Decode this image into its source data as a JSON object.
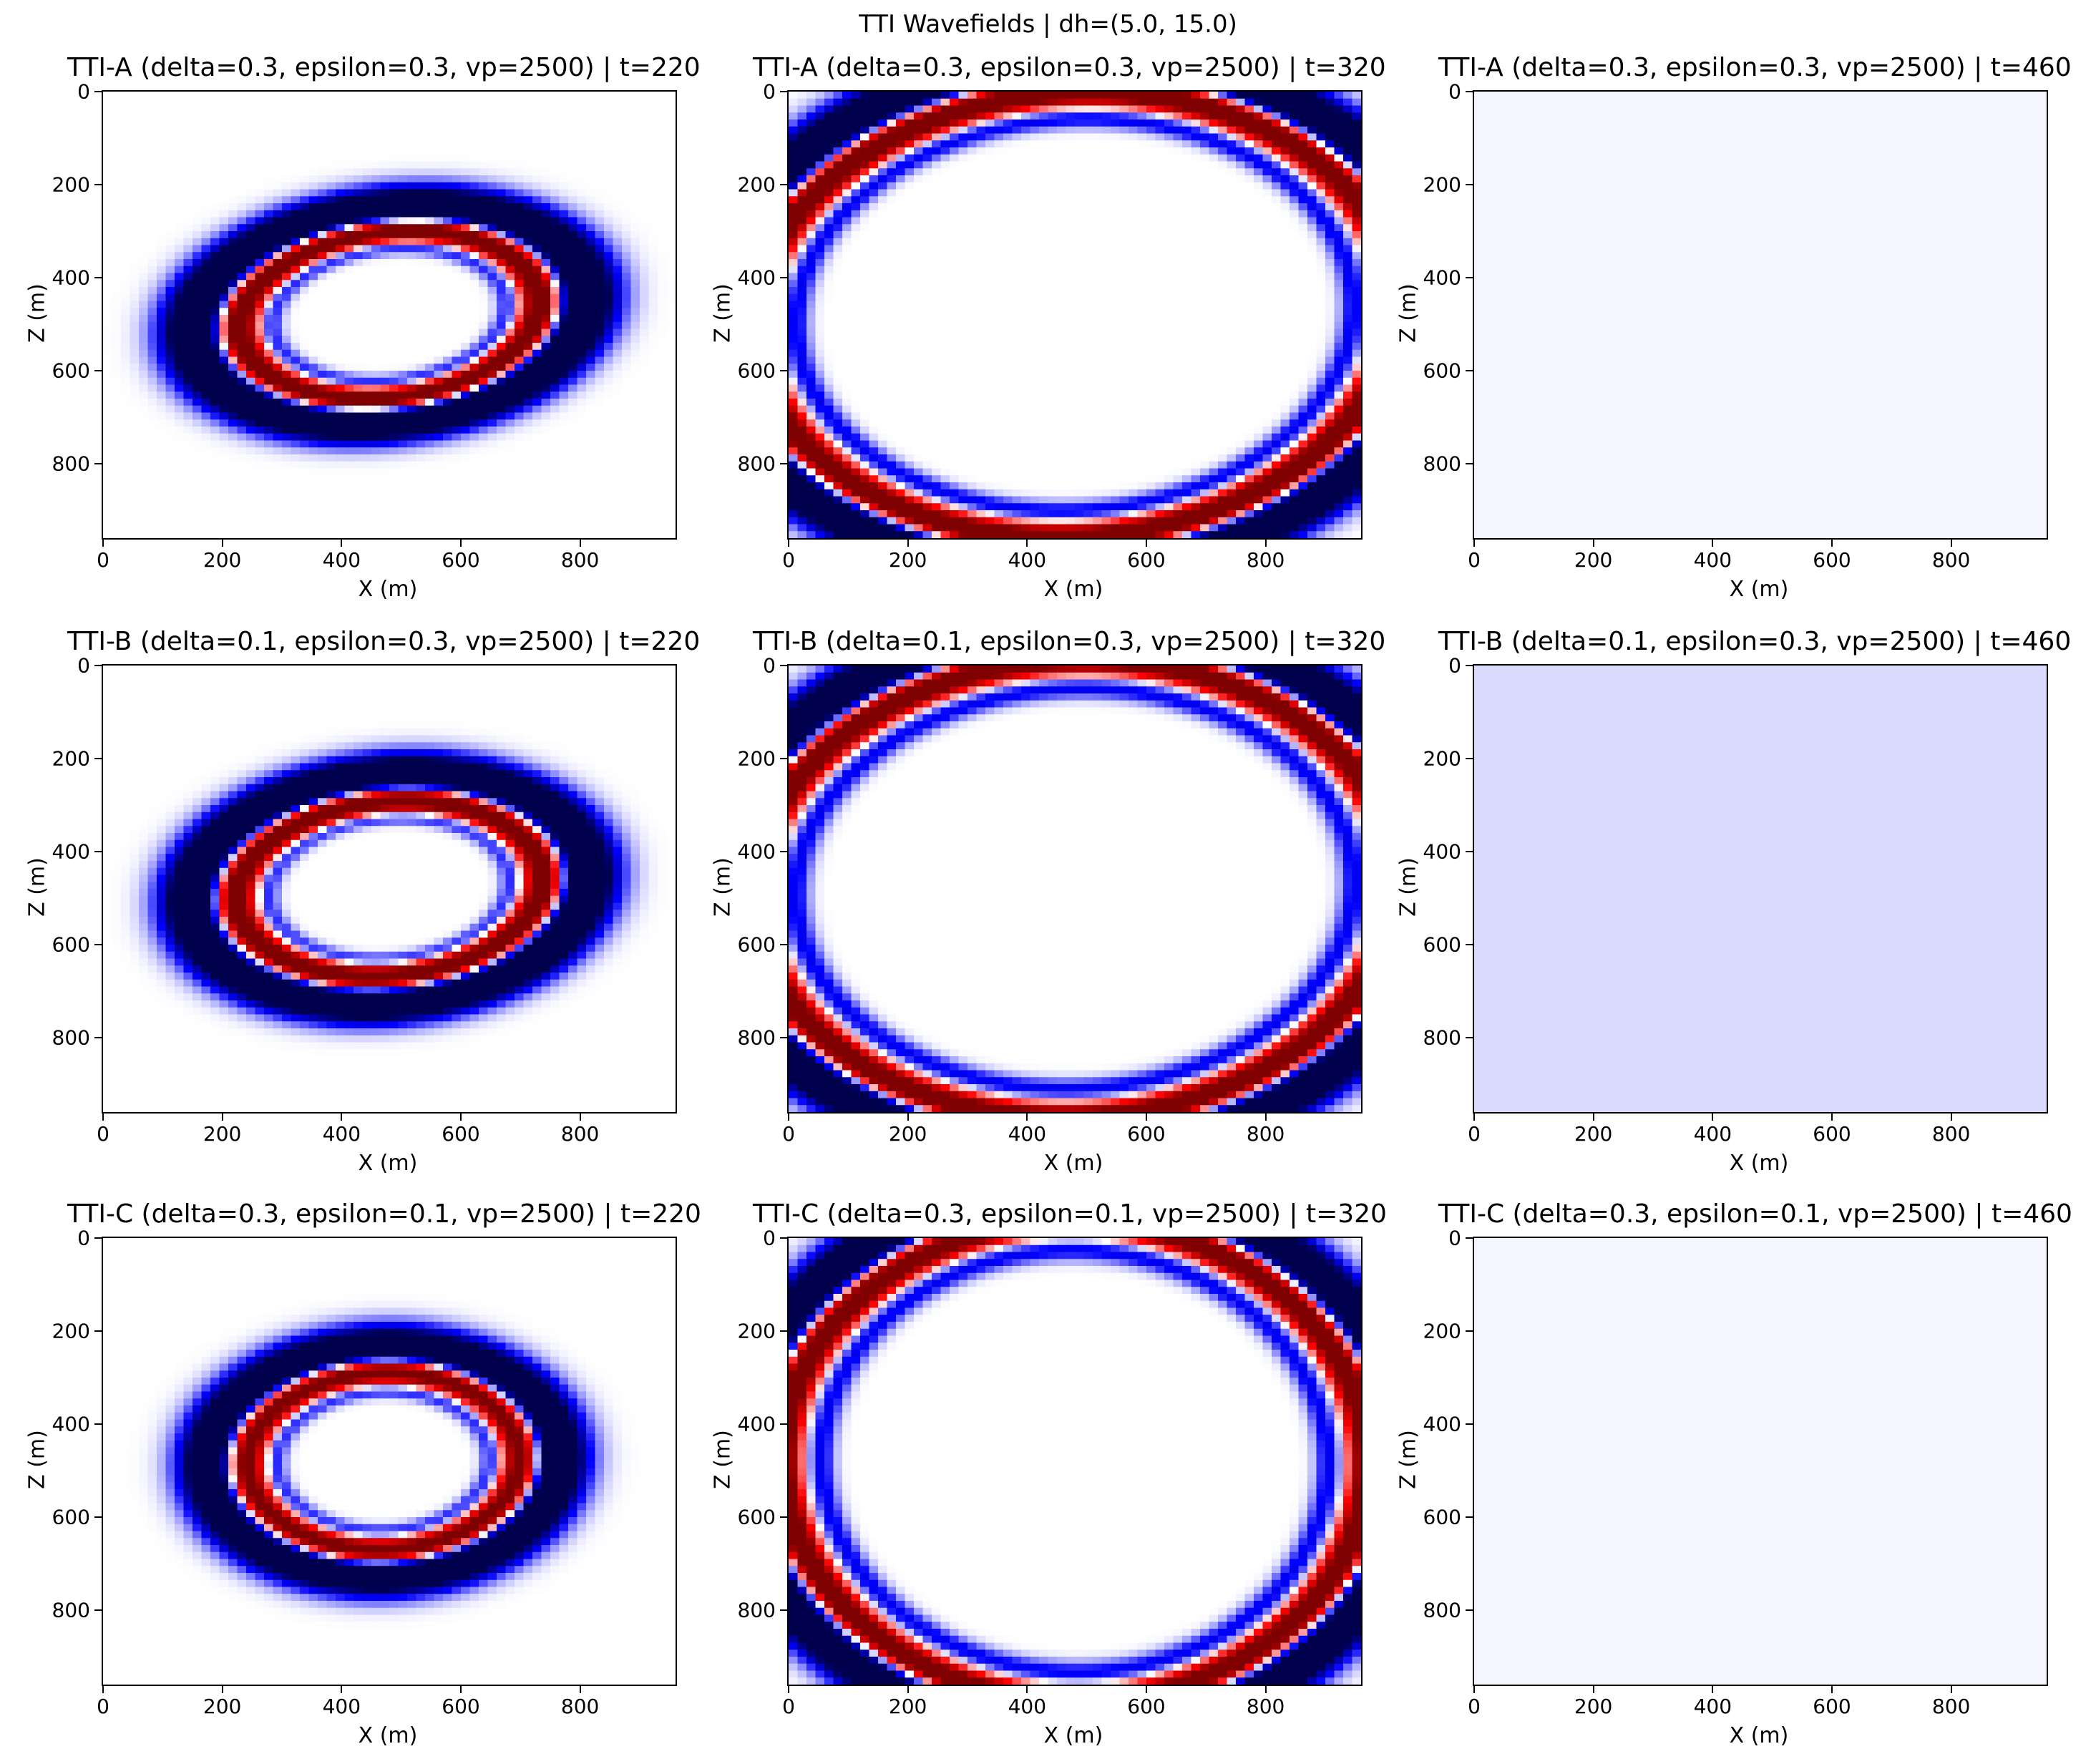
{
  "figure": {
    "title": "TTI Wavefields | dh=(5.0, 15.0)"
  },
  "chart_data": [
    {
      "type": "heatmap",
      "title": "TTI-A (delta=0.3, epsilon=0.3, vp=2500) | t=220",
      "xlabel": "X (m)",
      "ylabel": "Z (m)",
      "xlim": [
        0,
        960
      ],
      "ylim": [
        960,
        0
      ],
      "xticks": [
        0,
        200,
        400,
        600,
        800
      ],
      "yticks": [
        0,
        200,
        400,
        600,
        800
      ],
      "colormap": "seismic",
      "field": {
        "cx": 480,
        "cz": 480,
        "rings": [
          {
            "rx": 330,
            "rz": 230,
            "w": 70,
            "sign": -1,
            "amp": 1.0
          },
          {
            "rx": 260,
            "rz": 180,
            "w": 40,
            "sign": 1,
            "amp": 1.0
          },
          {
            "rx": 200,
            "rz": 140,
            "w": 22,
            "sign": -1,
            "amp": 0.3
          }
        ],
        "tilt_deg": -12
      }
    },
    {
      "type": "heatmap",
      "title": "TTI-A (delta=0.3, epsilon=0.3, vp=2500) | t=320",
      "xlabel": "X (m)",
      "ylabel": "Z (m)",
      "xlim": [
        0,
        960
      ],
      "ylim": [
        960,
        0
      ],
      "xticks": [
        0,
        200,
        400,
        600,
        800
      ],
      "yticks": [
        0,
        200,
        400,
        600,
        800
      ],
      "colormap": "seismic",
      "field": {
        "cx": 480,
        "cz": 480,
        "rings": [
          {
            "rx": 610,
            "rz": 545,
            "w": 70,
            "sign": -1,
            "amp": 1.0
          },
          {
            "rx": 545,
            "rz": 480,
            "w": 45,
            "sign": 1,
            "amp": 1.0
          },
          {
            "rx": 470,
            "rz": 420,
            "w": 30,
            "sign": -1,
            "amp": 0.35
          }
        ],
        "tilt_deg": -12
      }
    },
    {
      "type": "heatmap",
      "title": "TTI-A (delta=0.3, epsilon=0.3, vp=2500) | t=460",
      "xlabel": "X (m)",
      "ylabel": "Z (m)",
      "xlim": [
        0,
        960
      ],
      "ylim": [
        960,
        0
      ],
      "xticks": [
        0,
        200,
        400,
        600,
        800
      ],
      "yticks": [
        0,
        200,
        400,
        600,
        800
      ],
      "colormap": "seismic",
      "field": {
        "cx": 480,
        "cz": 480,
        "rings": [],
        "tilt_deg": 0,
        "background": 0.02
      }
    },
    {
      "type": "heatmap",
      "title": "TTI-B (delta=0.1, epsilon=0.3, vp=2500) | t=220",
      "xlabel": "X (m)",
      "ylabel": "Z (m)",
      "xlim": [
        0,
        960
      ],
      "ylim": [
        960,
        0
      ],
      "xticks": [
        0,
        200,
        400,
        600,
        800
      ],
      "yticks": [
        0,
        200,
        400,
        600,
        800
      ],
      "colormap": "seismic",
      "field": {
        "cx": 480,
        "cz": 480,
        "rings": [
          {
            "rx": 330,
            "rz": 245,
            "w": 70,
            "sign": -1,
            "amp": 1.0
          },
          {
            "rx": 265,
            "rz": 190,
            "w": 42,
            "sign": 1,
            "amp": 1.0
          },
          {
            "rx": 205,
            "rz": 150,
            "w": 22,
            "sign": -1,
            "amp": 0.3
          }
        ],
        "tilt_deg": -10
      }
    },
    {
      "type": "heatmap",
      "title": "TTI-B (delta=0.1, epsilon=0.3, vp=2500) | t=320",
      "xlabel": "X (m)",
      "ylabel": "Z (m)",
      "xlim": [
        0,
        960
      ],
      "ylim": [
        960,
        0
      ],
      "xticks": [
        0,
        200,
        400,
        600,
        800
      ],
      "yticks": [
        0,
        200,
        400,
        600,
        800
      ],
      "colormap": "seismic",
      "field": {
        "cx": 480,
        "cz": 480,
        "rings": [
          {
            "rx": 610,
            "rz": 560,
            "w": 70,
            "sign": -1,
            "amp": 1.0
          },
          {
            "rx": 545,
            "rz": 495,
            "w": 45,
            "sign": 1,
            "amp": 1.0
          },
          {
            "rx": 470,
            "rz": 430,
            "w": 32,
            "sign": -1,
            "amp": 0.35
          }
        ],
        "tilt_deg": -10
      }
    },
    {
      "type": "heatmap",
      "title": "TTI-B (delta=0.1, epsilon=0.3, vp=2500) | t=460",
      "xlabel": "X (m)",
      "ylabel": "Z (m)",
      "xlim": [
        0,
        960
      ],
      "ylim": [
        960,
        0
      ],
      "xticks": [
        0,
        200,
        400,
        600,
        800
      ],
      "yticks": [
        0,
        200,
        400,
        600,
        800
      ],
      "colormap": "seismic",
      "field": {
        "cx": 480,
        "cz": 480,
        "rings": [],
        "tilt_deg": 0,
        "background": 0.07
      }
    },
    {
      "type": "heatmap",
      "title": "TTI-C (delta=0.3, epsilon=0.1, vp=2500) | t=220",
      "xlabel": "X (m)",
      "ylabel": "Z (m)",
      "xlim": [
        0,
        960
      ],
      "ylim": [
        960,
        0
      ],
      "xticks": [
        0,
        200,
        400,
        600,
        800
      ],
      "yticks": [
        0,
        200,
        400,
        600,
        800
      ],
      "colormap": "seismic",
      "field": {
        "cx": 470,
        "cz": 480,
        "rings": [
          {
            "rx": 290,
            "rz": 245,
            "w": 70,
            "sign": -1,
            "amp": 1.0
          },
          {
            "rx": 235,
            "rz": 195,
            "w": 42,
            "sign": 1,
            "amp": 1.0
          },
          {
            "rx": 180,
            "rz": 150,
            "w": 22,
            "sign": -1,
            "amp": 0.3
          }
        ],
        "tilt_deg": -5
      }
    },
    {
      "type": "heatmap",
      "title": "TTI-C (delta=0.3, epsilon=0.1, vp=2500) | t=320",
      "xlabel": "X (m)",
      "ylabel": "Z (m)",
      "xlim": [
        0,
        960
      ],
      "ylim": [
        960,
        0
      ],
      "xticks": [
        0,
        200,
        400,
        600,
        800
      ],
      "yticks": [
        0,
        200,
        400,
        600,
        800
      ],
      "colormap": "seismic",
      "field": {
        "cx": 480,
        "cz": 480,
        "rings": [
          {
            "rx": 560,
            "rz": 580,
            "w": 70,
            "sign": -1,
            "amp": 1.0
          },
          {
            "rx": 495,
            "rz": 520,
            "w": 45,
            "sign": 1,
            "amp": 1.0
          },
          {
            "rx": 425,
            "rz": 455,
            "w": 32,
            "sign": -1,
            "amp": 0.35
          }
        ],
        "tilt_deg": -5
      }
    },
    {
      "type": "heatmap",
      "title": "TTI-C (delta=0.3, epsilon=0.1, vp=2500) | t=460",
      "xlabel": "X (m)",
      "ylabel": "Z (m)",
      "xlim": [
        0,
        960
      ],
      "ylim": [
        960,
        0
      ],
      "xticks": [
        0,
        200,
        400,
        600,
        800
      ],
      "yticks": [
        0,
        200,
        400,
        600,
        800
      ],
      "colormap": "seismic",
      "field": {
        "cx": 480,
        "cz": 480,
        "rings": [],
        "tilt_deg": 0,
        "background": 0.02
      }
    }
  ]
}
